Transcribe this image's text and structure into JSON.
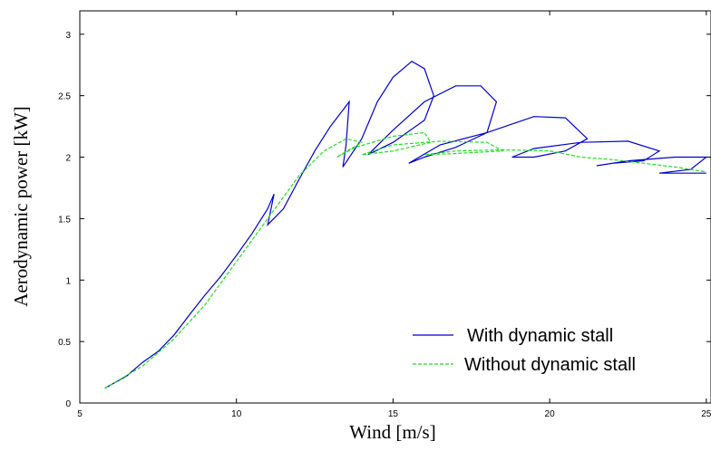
{
  "chart_data": {
    "type": "line",
    "xlabel": "Wind [m/s]",
    "ylabel": "Aerodynamic power [kW]",
    "xlim": [
      5,
      25.15
    ],
    "ylim": [
      0,
      3.19
    ],
    "xticks": [
      5,
      10,
      15,
      20,
      25
    ],
    "yticks": [
      0,
      0.5,
      1,
      1.5,
      2,
      2.5,
      3
    ],
    "grid": false,
    "legend": "lower right",
    "series": [
      {
        "name": "With dynamic stall",
        "color": "#0000cc",
        "linestyle": "solid",
        "x": [
          5.8,
          6.5,
          7,
          7.5,
          8,
          8.6,
          9,
          9.5,
          10,
          10.5,
          11,
          11.2,
          11,
          11.5,
          12,
          12.5,
          13,
          13.6,
          13.5,
          13.4,
          14,
          14.5,
          15,
          15.6,
          16,
          16.3,
          16,
          15,
          14.2,
          15,
          16,
          17,
          17.8,
          18.3,
          18,
          17,
          16,
          15.5,
          16.5,
          18,
          19.5,
          20.5,
          21.2,
          20.5,
          19.5,
          18.8,
          19.5,
          21,
          22.5,
          23.5,
          23,
          22,
          21.5,
          22.5,
          24,
          25,
          24.5,
          23.5,
          25
        ],
        "values": [
          0.12,
          0.22,
          0.33,
          0.42,
          0.55,
          0.75,
          0.88,
          1.03,
          1.2,
          1.38,
          1.58,
          1.7,
          1.45,
          1.58,
          1.82,
          2.05,
          2.25,
          2.45,
          2.1,
          1.92,
          2.15,
          2.45,
          2.65,
          2.78,
          2.72,
          2.5,
          2.3,
          2.12,
          2.02,
          2.22,
          2.45,
          2.58,
          2.58,
          2.45,
          2.2,
          2.08,
          2.0,
          1.95,
          2.1,
          2.2,
          2.33,
          2.32,
          2.15,
          2.05,
          2.0,
          2.0,
          2.07,
          2.12,
          2.13,
          2.05,
          1.97,
          1.95,
          1.93,
          1.97,
          2.0,
          2.0,
          1.9,
          1.87,
          1.87
        ]
      },
      {
        "name": "Without dynamic stall",
        "color": "#22dd22",
        "linestyle": "dashed",
        "x": [
          5.8,
          7,
          8,
          9,
          10,
          11,
          12,
          12.8,
          13.5,
          14,
          13.2,
          13.8,
          15,
          16,
          16.2,
          15,
          14,
          15,
          16.5,
          18,
          18.5,
          17,
          16,
          17,
          18.5,
          20,
          21,
          22,
          23,
          24,
          25
        ],
        "values": [
          0.12,
          0.3,
          0.52,
          0.8,
          1.15,
          1.5,
          1.85,
          2.05,
          2.15,
          2.12,
          2.0,
          2.08,
          2.17,
          2.2,
          2.12,
          2.05,
          2.02,
          2.1,
          2.13,
          2.12,
          2.05,
          2.03,
          2.02,
          2.05,
          2.06,
          2.05,
          2.0,
          1.98,
          1.95,
          1.92,
          1.88
        ]
      }
    ]
  }
}
